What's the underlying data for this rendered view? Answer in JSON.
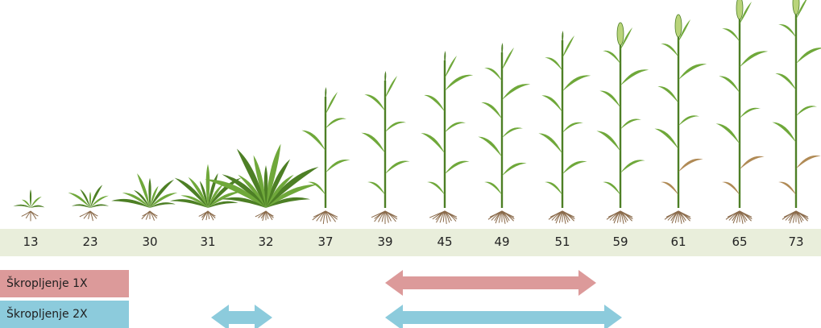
{
  "stages": [
    "13",
    "23",
    "30",
    "31",
    "32",
    "37",
    "39",
    "45",
    "49",
    "51",
    "59",
    "61",
    "65",
    "73"
  ],
  "spray": {
    "once_label": "Škropljenje 1X",
    "twice_label": "Škropljenje 2X",
    "once_color": "#dc9a9a",
    "twice_color": "#8ccbdc"
  },
  "colors": {
    "band": "#e9eedb",
    "leaf": "#6fa83a",
    "leaf_dark": "#4d7f25",
    "dry_leaf": "#b08a55",
    "root": "#8a6a4a",
    "ear": "#b9d47a"
  }
}
